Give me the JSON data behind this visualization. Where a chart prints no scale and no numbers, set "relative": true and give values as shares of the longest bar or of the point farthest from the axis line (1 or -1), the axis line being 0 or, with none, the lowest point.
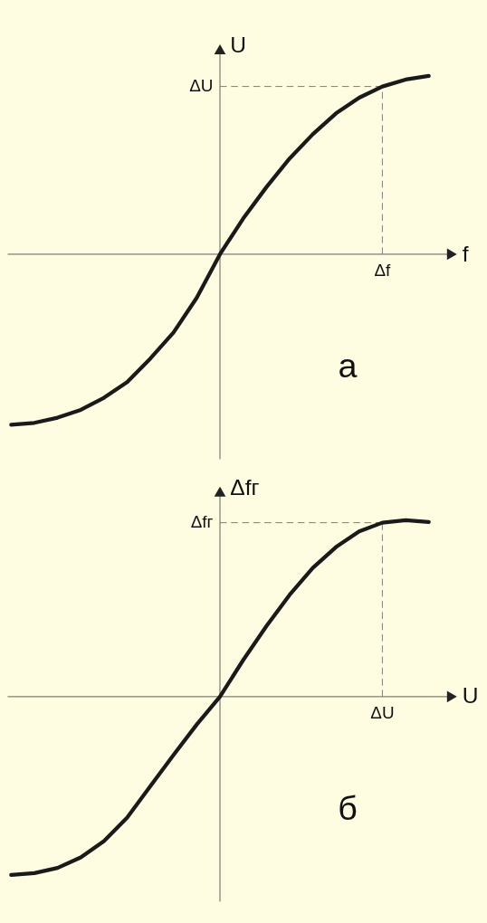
{
  "chart_data": [
    {
      "type": "line",
      "relative": true,
      "xlabel": "f",
      "ylabel": "U",
      "line_style": "solid",
      "categories": [
        null,
        null,
        null,
        null,
        null,
        null,
        null,
        null,
        null,
        null,
        null,
        null,
        null,
        null,
        null,
        null,
        null,
        null,
        null
      ],
      "series": [
        {
          "color": "#1a1a1a",
          "values": [
            -0.956,
            -0.946,
            -0.917,
            -0.873,
            -0.805,
            -0.717,
            -0.585,
            -0.439,
            -0.244,
            0,
            0.2,
            0.376,
            0.537,
            0.673,
            0.79,
            0.878,
            0.941,
            0.98,
            1.0
          ]
        }
      ],
      "ref_lines": [
        {
          "axis": "y",
          "value": 0.941,
          "label": "ΔU",
          "line_style": "dashed"
        },
        {
          "axis": "x",
          "value": "Δf",
          "line_style": "dashed"
        }
      ],
      "annotations": [
        "а"
      ]
    },
    {
      "type": "line",
      "relative": true,
      "xlabel": "U",
      "ylabel": "Δfг",
      "line_style": "solid",
      "categories": [
        null,
        null,
        null,
        null,
        null,
        null,
        null,
        null,
        null,
        null,
        null,
        null,
        null,
        null,
        null,
        null,
        null,
        null,
        null
      ],
      "series": [
        {
          "color": "#1a1a1a",
          "values": [
            -1.0,
            -0.99,
            -0.961,
            -0.902,
            -0.81,
            -0.678,
            -0.502,
            -0.327,
            -0.156,
            0,
            0.205,
            0.395,
            0.571,
            0.722,
            0.839,
            0.927,
            0.976,
            0.99,
            0.98
          ]
        }
      ],
      "ref_lines": [
        {
          "axis": "y",
          "value": 0.976,
          "label": "Δfг",
          "line_style": "dashed"
        },
        {
          "axis": "x",
          "value": "ΔU",
          "line_style": "dashed"
        }
      ],
      "annotations": [
        "б"
      ]
    }
  ]
}
